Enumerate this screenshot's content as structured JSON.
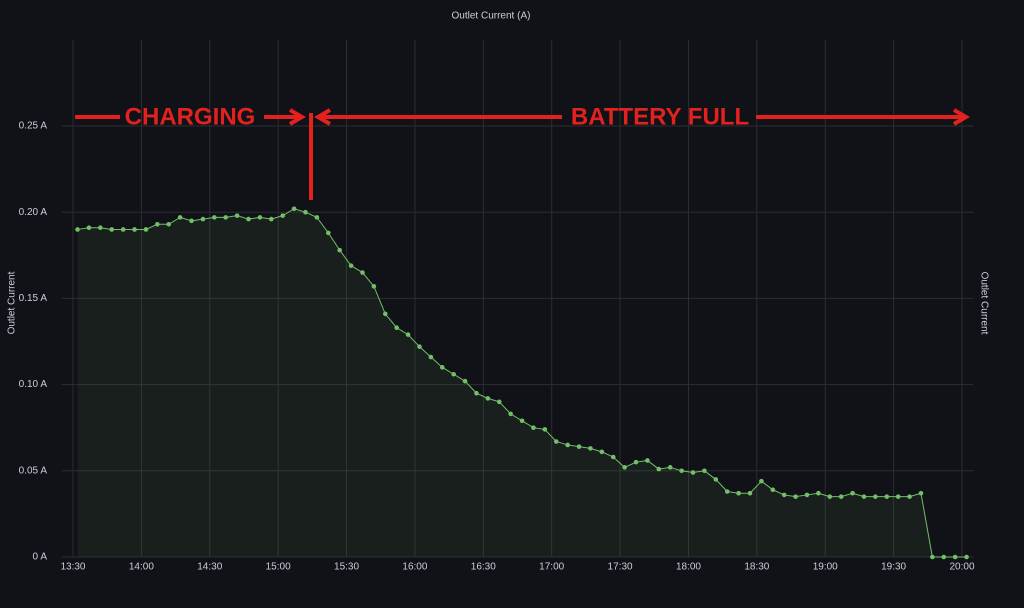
{
  "chart_data": {
    "type": "line",
    "title": "Outlet Current (A)",
    "y_label": "Outlet Current",
    "y2_label": "Outlet Current",
    "annotations": [
      "CHARGING",
      "BATTERY FULL"
    ],
    "color": "#73bf69",
    "grid": true,
    "x": [
      "13:32",
      "13:37",
      "13:42",
      "13:47",
      "13:52",
      "13:57",
      "14:02",
      "14:07",
      "14:12",
      "14:17",
      "14:22",
      "14:27",
      "14:32",
      "14:37",
      "14:42",
      "14:47",
      "14:52",
      "14:57",
      "15:02",
      "15:07",
      "15:12",
      "15:17",
      "15:22",
      "15:27",
      "15:32",
      "15:37",
      "15:42",
      "15:47",
      "15:52",
      "15:57",
      "16:02",
      "16:07",
      "16:12",
      "16:17",
      "16:22",
      "16:27",
      "16:32",
      "16:37",
      "16:42",
      "16:47",
      "16:52",
      "16:57",
      "17:02",
      "17:07",
      "17:12",
      "17:17",
      "17:22",
      "17:27",
      "17:32",
      "17:37",
      "17:42",
      "17:47",
      "17:52",
      "17:57",
      "18:02",
      "18:07",
      "18:12",
      "18:17",
      "18:22",
      "18:27",
      "18:32",
      "18:37",
      "18:42",
      "18:47",
      "18:52",
      "18:57",
      "19:02",
      "19:07",
      "19:12",
      "19:17",
      "19:22",
      "19:27",
      "19:32",
      "19:37",
      "19:42",
      "19:47",
      "19:52",
      "19:57",
      "20:02"
    ],
    "values": [
      0.19,
      0.191,
      0.191,
      0.19,
      0.19,
      0.19,
      0.19,
      0.193,
      0.193,
      0.197,
      0.195,
      0.196,
      0.197,
      0.197,
      0.198,
      0.196,
      0.197,
      0.196,
      0.198,
      0.202,
      0.2,
      0.197,
      0.188,
      0.178,
      0.169,
      0.165,
      0.157,
      0.141,
      0.133,
      0.129,
      0.122,
      0.116,
      0.11,
      0.106,
      0.102,
      0.095,
      0.092,
      0.09,
      0.083,
      0.079,
      0.075,
      0.074,
      0.067,
      0.065,
      0.064,
      0.063,
      0.061,
      0.058,
      0.052,
      0.055,
      0.056,
      0.051,
      0.052,
      0.05,
      0.049,
      0.05,
      0.045,
      0.038,
      0.037,
      0.037,
      0.044,
      0.039,
      0.036,
      0.035,
      0.036,
      0.037,
      0.035,
      0.035,
      0.037,
      0.035,
      0.035,
      0.035,
      0.035,
      0.035,
      0.037,
      0,
      0,
      0,
      0
    ],
    "xlim": [
      "13:25",
      "20:05"
    ],
    "xticks": [
      "13:30",
      "14:00",
      "14:30",
      "15:00",
      "15:30",
      "16:00",
      "16:30",
      "17:00",
      "17:30",
      "18:00",
      "18:30",
      "19:00",
      "19:30",
      "20:00"
    ],
    "ylim": [
      0,
      0.3
    ],
    "yticks": [
      {
        "value": 0,
        "label": "0 A"
      },
      {
        "value": 0.05,
        "label": "0.05 A"
      },
      {
        "value": 0.1,
        "label": "0.10 A"
      },
      {
        "value": 0.15,
        "label": "0.15 A"
      },
      {
        "value": 0.2,
        "label": "0.20 A"
      },
      {
        "value": 0.25,
        "label": "0.25 A"
      }
    ]
  }
}
